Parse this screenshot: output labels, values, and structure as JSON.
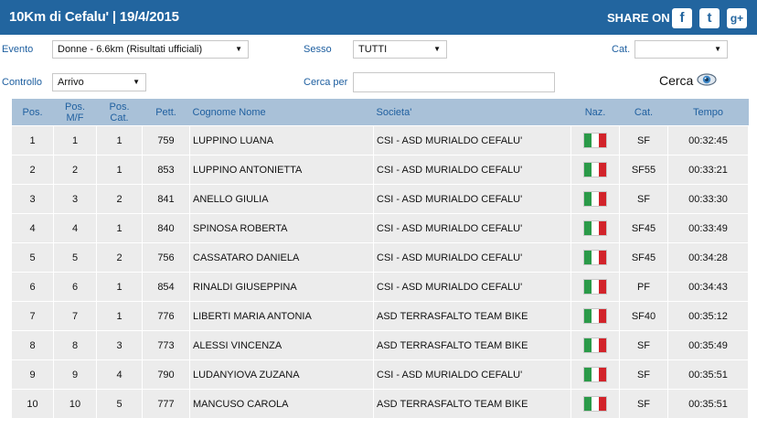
{
  "header": {
    "title": "10Km di Cefalu'  |  19/4/2015",
    "share_label": "SHARE ON",
    "share_icons": [
      {
        "name": "facebook-icon",
        "glyph": "f"
      },
      {
        "name": "twitter-icon",
        "glyph": "t"
      },
      {
        "name": "google-plus-icon",
        "glyph": "g+"
      }
    ]
  },
  "filters": {
    "evento_label": "Evento",
    "evento_value": "Donne - 6.6km (Risultati ufficiali)",
    "sesso_label": "Sesso",
    "sesso_value": "TUTTI",
    "cat_label": "Cat.",
    "cat_value": "",
    "controllo_label": "Controllo",
    "controllo_value": "Arrivo",
    "cerca_per_label": "Cerca per",
    "cerca_per_value": "",
    "cerca_label": "Cerca"
  },
  "table": {
    "headers": [
      "Pos.",
      "Pos. M/F",
      "Pos. Cat.",
      "Pett.",
      "Cognome Nome",
      "Societa'",
      "Naz.",
      "Cat.",
      "Tempo"
    ],
    "rows": [
      [
        "1",
        "1",
        "1",
        "759",
        "LUPPINO LUANA",
        "CSI - ASD MURIALDO CEFALU'",
        "SF",
        "00:32:45"
      ],
      [
        "2",
        "2",
        "1",
        "853",
        "LUPPINO ANTONIETTA",
        "CSI - ASD MURIALDO CEFALU'",
        "SF55",
        "00:33:21"
      ],
      [
        "3",
        "3",
        "2",
        "841",
        "ANELLO GIULIA",
        "CSI - ASD MURIALDO CEFALU'",
        "SF",
        "00:33:30"
      ],
      [
        "4",
        "4",
        "1",
        "840",
        "SPINOSA ROBERTA",
        "CSI - ASD MURIALDO CEFALU'",
        "SF45",
        "00:33:49"
      ],
      [
        "5",
        "5",
        "2",
        "756",
        "CASSATARO DANIELA",
        "CSI - ASD MURIALDO CEFALU'",
        "SF45",
        "00:34:28"
      ],
      [
        "6",
        "6",
        "1",
        "854",
        "RINALDI GIUSEPPINA",
        "CSI - ASD MURIALDO CEFALU'",
        "PF",
        "00:34:43"
      ],
      [
        "7",
        "7",
        "1",
        "776",
        "LIBERTI MARIA ANTONIA",
        "ASD TERRASFALTO TEAM BIKE",
        "SF40",
        "00:35:12"
      ],
      [
        "8",
        "8",
        "3",
        "773",
        "ALESSI VINCENZA",
        "ASD TERRASFALTO TEAM BIKE",
        "SF",
        "00:35:49"
      ],
      [
        "9",
        "9",
        "4",
        "790",
        "LUDANYIOVA ZUZANA",
        "CSI - ASD MURIALDO CEFALU'",
        "SF",
        "00:35:51"
      ],
      [
        "10",
        "10",
        "5",
        "777",
        "MANCUSO CAROLA",
        "ASD TERRASFALTO TEAM BIKE",
        "SF",
        "00:35:51"
      ]
    ],
    "flag_colors": [
      "#2a9a48",
      "#ffffff",
      "#d2232a"
    ]
  }
}
